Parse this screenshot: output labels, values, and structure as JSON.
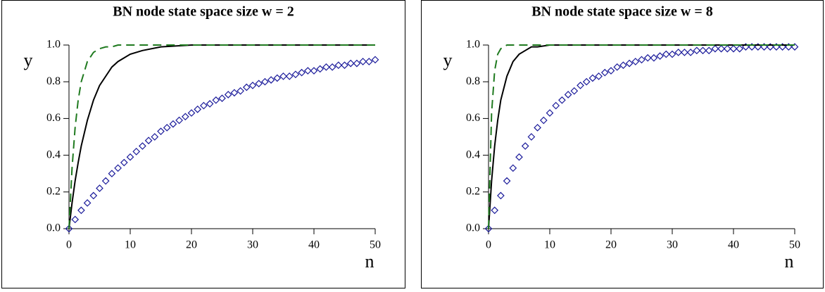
{
  "chart_data": [
    {
      "type": "line",
      "title": "BN node state space size w = 2",
      "x_label": "n",
      "y_label": "y",
      "xlim": [
        0,
        50
      ],
      "ylim": [
        0,
        1
      ],
      "xticks": [
        0,
        10,
        20,
        30,
        40,
        50
      ],
      "yticks": [
        {
          "value": 0,
          "label": "0.0"
        },
        0.2,
        0.4,
        0.6,
        0.8,
        {
          "value": 1,
          "label": "1.0"
        }
      ],
      "series": [
        {
          "color": "#000000",
          "style": "solid",
          "x": [
            0,
            0.5,
            1,
            1.5,
            2,
            3,
            4,
            5,
            6,
            7,
            8,
            10,
            12,
            15,
            20,
            30,
            50
          ],
          "values": [
            0,
            0.14,
            0.26,
            0.36,
            0.45,
            0.59,
            0.7,
            0.78,
            0.83,
            0.88,
            0.91,
            0.95,
            0.97,
            0.99,
            1.0,
            1.0,
            1.0
          ]
        },
        {
          "color": "#1f7a1f",
          "style": "dashed",
          "x": [
            0,
            0.5,
            1,
            1.5,
            2,
            3,
            4,
            5,
            6,
            7,
            8,
            10,
            12,
            15,
            20,
            30,
            50
          ],
          "values": [
            0,
            0.33,
            0.55,
            0.7,
            0.8,
            0.91,
            0.96,
            0.98,
            0.99,
            0.99,
            1.0,
            1.0,
            1.0,
            1.0,
            1.0,
            1.0,
            1.0
          ]
        },
        {
          "color": "#1a1a9a",
          "style": "diamond",
          "x": [
            0,
            1,
            2,
            3,
            4,
            5,
            6,
            7,
            8,
            9,
            10,
            11,
            12,
            13,
            14,
            15,
            16,
            17,
            18,
            19,
            20,
            21,
            22,
            23,
            24,
            25,
            26,
            27,
            28,
            29,
            30,
            31,
            32,
            33,
            34,
            35,
            36,
            37,
            38,
            39,
            40,
            41,
            42,
            43,
            44,
            45,
            46,
            47,
            48,
            49,
            50
          ],
          "values": [
            0,
            0.05,
            0.1,
            0.14,
            0.18,
            0.22,
            0.26,
            0.3,
            0.33,
            0.36,
            0.39,
            0.42,
            0.45,
            0.48,
            0.5,
            0.53,
            0.55,
            0.57,
            0.59,
            0.61,
            0.63,
            0.65,
            0.67,
            0.68,
            0.7,
            0.71,
            0.73,
            0.74,
            0.75,
            0.77,
            0.78,
            0.79,
            0.8,
            0.81,
            0.82,
            0.83,
            0.83,
            0.84,
            0.85,
            0.86,
            0.86,
            0.87,
            0.88,
            0.88,
            0.89,
            0.89,
            0.9,
            0.9,
            0.91,
            0.91,
            0.92
          ]
        }
      ]
    },
    {
      "type": "line",
      "title": "BN node state space size w = 8",
      "x_label": "n",
      "y_label": "y",
      "xlim": [
        0,
        50
      ],
      "ylim": [
        0,
        1
      ],
      "xticks": [
        0,
        10,
        20,
        30,
        40,
        50
      ],
      "yticks": [
        {
          "value": 0,
          "label": "0.0"
        },
        0.2,
        0.4,
        0.6,
        0.8,
        {
          "value": 1,
          "label": "1.0"
        }
      ],
      "series": [
        {
          "color": "#000000",
          "style": "solid",
          "x": [
            0,
            0.5,
            1,
            1.5,
            2,
            3,
            4,
            5,
            6,
            7,
            8,
            10,
            12,
            15,
            20,
            30,
            50
          ],
          "values": [
            0,
            0.26,
            0.45,
            0.59,
            0.7,
            0.83,
            0.91,
            0.95,
            0.97,
            0.99,
            0.99,
            1.0,
            1.0,
            1.0,
            1.0,
            1.0,
            1.0
          ]
        },
        {
          "color": "#1f7a1f",
          "style": "dashed",
          "x": [
            0,
            0.5,
            1,
            1.5,
            2,
            3,
            4,
            5,
            6,
            7,
            8,
            10,
            12,
            15,
            20,
            30,
            50
          ],
          "values": [
            0,
            0.63,
            0.86,
            0.95,
            0.98,
            1.0,
            1.0,
            1.0,
            1.0,
            1.0,
            1.0,
            1.0,
            1.0,
            1.0,
            1.0,
            1.0,
            1.0
          ]
        },
        {
          "color": "#1a1a9a",
          "style": "diamond",
          "x": [
            0,
            1,
            2,
            3,
            4,
            5,
            6,
            7,
            8,
            9,
            10,
            11,
            12,
            13,
            14,
            15,
            16,
            17,
            18,
            19,
            20,
            21,
            22,
            23,
            24,
            25,
            26,
            27,
            28,
            29,
            30,
            31,
            32,
            33,
            34,
            35,
            36,
            37,
            38,
            39,
            40,
            41,
            42,
            43,
            44,
            45,
            46,
            47,
            48,
            49,
            50
          ],
          "values": [
            0,
            0.1,
            0.18,
            0.26,
            0.33,
            0.39,
            0.45,
            0.5,
            0.55,
            0.59,
            0.63,
            0.67,
            0.7,
            0.73,
            0.75,
            0.78,
            0.8,
            0.82,
            0.83,
            0.85,
            0.86,
            0.88,
            0.89,
            0.9,
            0.91,
            0.92,
            0.93,
            0.93,
            0.94,
            0.95,
            0.95,
            0.96,
            0.96,
            0.96,
            0.97,
            0.97,
            0.97,
            0.98,
            0.98,
            0.98,
            0.98,
            0.98,
            0.99,
            0.99,
            0.99,
            0.99,
            0.99,
            0.99,
            0.99,
            0.99,
            0.99
          ]
        }
      ]
    }
  ]
}
